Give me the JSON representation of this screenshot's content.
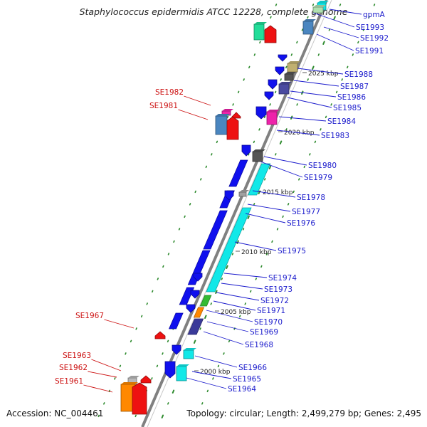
{
  "title": "Staphylococcus epidermidis ATCC 12228, complete genome",
  "accession": "Accession: NC_004461",
  "topology": "Topology: circular; Length: 2,499,279 bp; Genes: 2,495",
  "colors": {
    "backbone": "#808080",
    "forward_label": "#1a1acc",
    "reverse_label": "#cc1111",
    "orf_dot": "#2e8b2e"
  },
  "kbp_ticks": [
    "2025 kbp",
    "2020 kbp",
    "2015 kbp",
    "2010 kbp",
    "2005 kbp",
    "2000 kbp"
  ],
  "genes_forward": [
    "gpmA",
    "SE1993",
    "SE1992",
    "SE1991",
    "SE1988",
    "SE1987",
    "SE1986",
    "SE1985",
    "SE1984",
    "SE1983",
    "SE1980",
    "SE1979",
    "SE1978",
    "SE1977",
    "SE1976",
    "SE1975",
    "SE1974",
    "SE1973",
    "SE1972",
    "SE1971",
    "SE1970",
    "SE1969",
    "SE1968",
    "SE1966",
    "SE1965",
    "SE1964"
  ],
  "genes_reverse": [
    "SE1982",
    "SE1981",
    "SE1967",
    "SE1963",
    "SE1962",
    "SE1961"
  ]
}
